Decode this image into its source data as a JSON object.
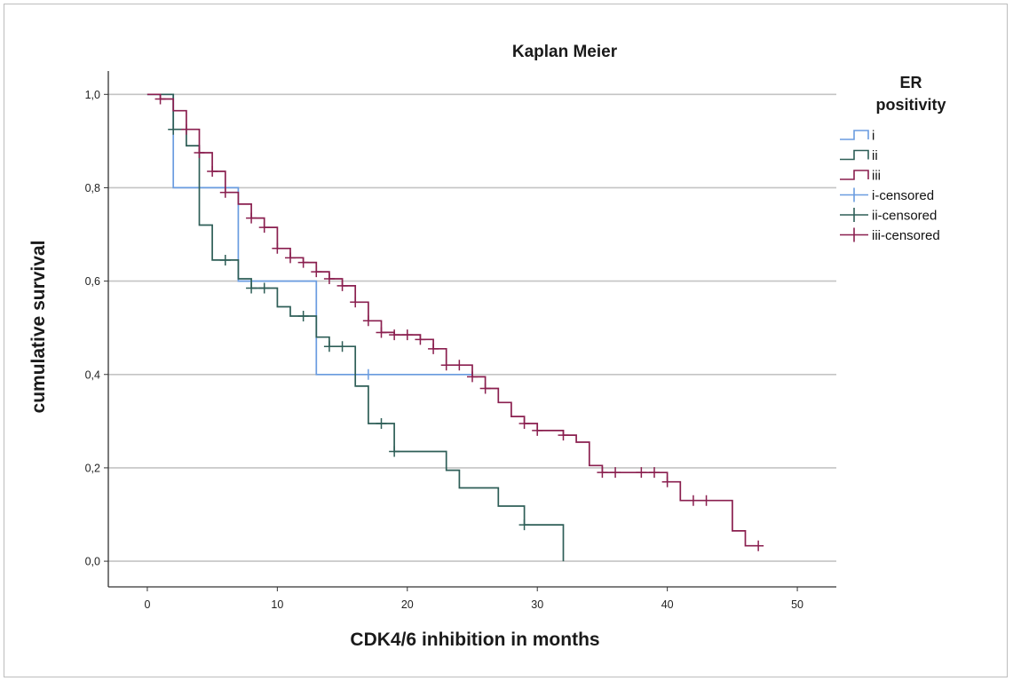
{
  "chart_data": {
    "type": "line",
    "subtype": "kaplan-meier-step",
    "title": "Kaplan Meier",
    "xlabel": "CDK4/6 inhibition in months",
    "ylabel": "cumulative survival",
    "xlim": [
      -3,
      53
    ],
    "ylim": [
      -0.055,
      1.05
    ],
    "x_ticks": [
      0,
      10,
      20,
      30,
      40,
      50
    ],
    "x_tick_labels": [
      "0",
      "10",
      "20",
      "30",
      "40",
      "50"
    ],
    "y_ticks": [
      0,
      0.2,
      0.4,
      0.6,
      0.8,
      1.0
    ],
    "y_tick_labels": [
      "0,0",
      "0,2",
      "0,4",
      "0,6",
      "0,8",
      "1,0"
    ],
    "grid": "horizontal",
    "legend": {
      "title_lines": [
        "ER",
        "positivity"
      ],
      "placement": "right",
      "entries": [
        {
          "label": "i",
          "kind": "step",
          "series": 0
        },
        {
          "label": "ii",
          "kind": "step",
          "series": 1
        },
        {
          "label": "iii",
          "kind": "step",
          "series": 2
        },
        {
          "label": "i-censored",
          "kind": "censor",
          "series": 0
        },
        {
          "label": "ii-censored",
          "kind": "censor",
          "series": 1
        },
        {
          "label": "iii-censored",
          "kind": "censor",
          "series": 2
        }
      ]
    },
    "series": [
      {
        "name": "i",
        "color": "#6a9ce0",
        "steps": [
          [
            0,
            1.0
          ],
          [
            2,
            0.8
          ],
          [
            7,
            0.6
          ],
          [
            13,
            0.4
          ],
          [
            25,
            0.4
          ]
        ],
        "censored": [
          [
            17,
            0.4
          ]
        ]
      },
      {
        "name": "ii",
        "color": "#2e5e57",
        "steps": [
          [
            0,
            1.0
          ],
          [
            2,
            0.925
          ],
          [
            3,
            0.89
          ],
          [
            4,
            0.72
          ],
          [
            5,
            0.645
          ],
          [
            7,
            0.605
          ],
          [
            8,
            0.585
          ],
          [
            10,
            0.545
          ],
          [
            11,
            0.525
          ],
          [
            13,
            0.48
          ],
          [
            14,
            0.46
          ],
          [
            16,
            0.375
          ],
          [
            17,
            0.295
          ],
          [
            19,
            0.235
          ],
          [
            23,
            0.195
          ],
          [
            24,
            0.157
          ],
          [
            27,
            0.118
          ],
          [
            29,
            0.078
          ],
          [
            32,
            0.0
          ]
        ],
        "censored": [
          [
            2,
            0.925
          ],
          [
            6,
            0.645
          ],
          [
            8,
            0.585
          ],
          [
            9,
            0.585
          ],
          [
            12,
            0.525
          ],
          [
            14,
            0.46
          ],
          [
            15,
            0.46
          ],
          [
            18,
            0.295
          ],
          [
            19,
            0.235
          ],
          [
            29,
            0.078
          ]
        ]
      },
      {
        "name": "iii",
        "color": "#8a1f4f",
        "steps": [
          [
            0,
            1.0
          ],
          [
            1,
            0.99
          ],
          [
            2,
            0.965
          ],
          [
            3,
            0.925
          ],
          [
            4,
            0.875
          ],
          [
            5,
            0.835
          ],
          [
            6,
            0.79
          ],
          [
            7,
            0.765
          ],
          [
            8,
            0.735
          ],
          [
            9,
            0.715
          ],
          [
            10,
            0.67
          ],
          [
            11,
            0.65
          ],
          [
            12,
            0.64
          ],
          [
            13,
            0.62
          ],
          [
            14,
            0.605
          ],
          [
            15,
            0.59
          ],
          [
            16,
            0.555
          ],
          [
            17,
            0.515
          ],
          [
            18,
            0.49
          ],
          [
            19,
            0.485
          ],
          [
            21,
            0.475
          ],
          [
            22,
            0.455
          ],
          [
            23,
            0.42
          ],
          [
            25,
            0.395
          ],
          [
            26,
            0.37
          ],
          [
            27,
            0.34
          ],
          [
            28,
            0.31
          ],
          [
            29,
            0.295
          ],
          [
            30,
            0.28
          ],
          [
            32,
            0.27
          ],
          [
            33,
            0.255
          ],
          [
            34,
            0.205
          ],
          [
            35,
            0.19
          ],
          [
            40,
            0.17
          ],
          [
            41,
            0.13
          ],
          [
            45,
            0.065
          ],
          [
            46,
            0.033
          ],
          [
            47,
            0.033
          ]
        ],
        "censored": [
          [
            1,
            0.99
          ],
          [
            3,
            0.925
          ],
          [
            4,
            0.875
          ],
          [
            5,
            0.835
          ],
          [
            6,
            0.79
          ],
          [
            8,
            0.735
          ],
          [
            9,
            0.715
          ],
          [
            10,
            0.67
          ],
          [
            11,
            0.65
          ],
          [
            12,
            0.64
          ],
          [
            13,
            0.62
          ],
          [
            14,
            0.605
          ],
          [
            15,
            0.59
          ],
          [
            16,
            0.555
          ],
          [
            17,
            0.515
          ],
          [
            18,
            0.49
          ],
          [
            19,
            0.485
          ],
          [
            20,
            0.485
          ],
          [
            21,
            0.475
          ],
          [
            22,
            0.455
          ],
          [
            23,
            0.42
          ],
          [
            24,
            0.42
          ],
          [
            25,
            0.395
          ],
          [
            26,
            0.37
          ],
          [
            29,
            0.295
          ],
          [
            30,
            0.28
          ],
          [
            32,
            0.27
          ],
          [
            35,
            0.19
          ],
          [
            36,
            0.19
          ],
          [
            38,
            0.19
          ],
          [
            39,
            0.19
          ],
          [
            40,
            0.17
          ],
          [
            42,
            0.13
          ],
          [
            43,
            0.13
          ],
          [
            47,
            0.033
          ]
        ]
      }
    ]
  }
}
